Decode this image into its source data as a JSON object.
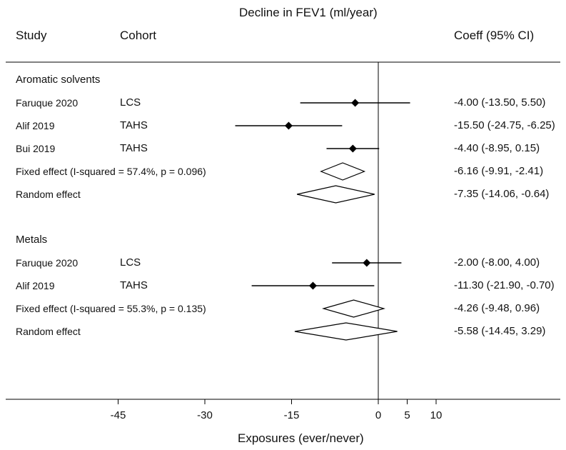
{
  "title": "Decline in FEV1 (ml/year)",
  "header": {
    "study": "Study",
    "cohort": "Cohort",
    "coeff": "Coeff (95% CI)"
  },
  "x_axis_label": "Exposures (ever/never)",
  "chart_data": {
    "type": "forest",
    "title": "Decline in FEV1 (ml/year)",
    "xlabel": "Exposures (ever/never)",
    "xlim": [
      -52.5,
      12
    ],
    "x_ticks": [
      -45,
      -30,
      -15,
      0,
      5,
      10
    ],
    "reference_line": 0,
    "groups": [
      {
        "name": "Aromatic solvents",
        "studies": [
          {
            "study": "Faruque 2020",
            "cohort": "LCS",
            "coef": -4.0,
            "lo": -13.5,
            "hi": 5.5,
            "label": "-4.00 (-13.50, 5.50)"
          },
          {
            "study": "Alif  2019",
            "cohort": "TAHS",
            "coef": -15.5,
            "lo": -24.75,
            "hi": -6.25,
            "label": "-15.50 (-24.75, -6.25)"
          },
          {
            "study": "Bui  2019",
            "cohort": "TAHS",
            "coef": -4.4,
            "lo": -8.95,
            "hi": 0.15,
            "label": "-4.40 (-8.95, 0.15)"
          }
        ],
        "summaries": [
          {
            "name": "Fixed effect (I-squared = 57.4%, p = 0.096)",
            "coef": -6.16,
            "lo": -9.91,
            "hi": -2.41,
            "label": "-6.16 (-9.91, -2.41)"
          },
          {
            "name": "Random effect",
            "coef": -7.35,
            "lo": -14.06,
            "hi": -0.64,
            "label": "-7.35 (-14.06, -0.64)"
          }
        ]
      },
      {
        "name": "Metals",
        "studies": [
          {
            "study": "Faruque 2020",
            "cohort": "LCS",
            "coef": -2.0,
            "lo": -8.0,
            "hi": 4.0,
            "label": "-2.00 (-8.00, 4.00)"
          },
          {
            "study": "Alif 2019",
            "cohort": "TAHS",
            "coef": -11.3,
            "lo": -21.9,
            "hi": -0.7,
            "label": "-11.30 (-21.90, -0.70)"
          }
        ],
        "summaries": [
          {
            "name": "Fixed effect  (I-squared = 55.3%, p = 0.135)",
            "coef": -4.26,
            "lo": -9.48,
            "hi": 0.96,
            "label": "-4.26 (-9.48, 0.96)"
          },
          {
            "name": "Random effect",
            "coef": -5.58,
            "lo": -14.45,
            "hi": 3.29,
            "label": "-5.58 (-14.45, 3.29)"
          }
        ]
      }
    ]
  }
}
